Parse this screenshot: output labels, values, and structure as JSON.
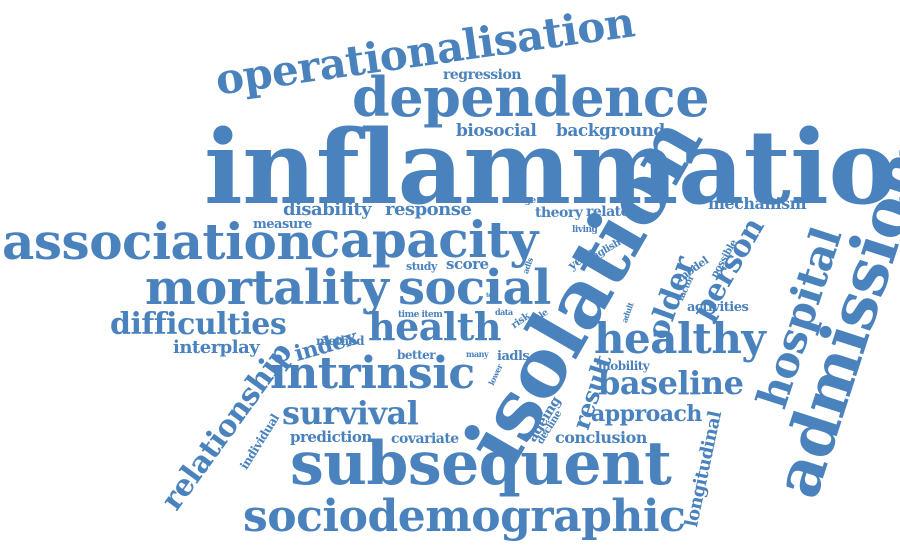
{
  "colors": {
    "word": "#4a82bd",
    "background": "#ffffff"
  },
  "words": [
    "inflammation",
    "isolation",
    "admission",
    "subsequent",
    "dependence",
    "sociodemographic",
    "association",
    "capacity",
    "operationalisation",
    "mortality",
    "social",
    "intrinsic",
    "health",
    "healthy",
    "hospital",
    "relationship",
    "survival",
    "difficulties",
    "baseline",
    "person",
    "older",
    "index",
    "approach",
    "result",
    "longitudinal",
    "biosocial",
    "background",
    "disability",
    "response",
    "interplay",
    "prediction",
    "covariate",
    "conclusion",
    "mechanism",
    "activities",
    "individual",
    "ageing",
    "regression",
    "mobility",
    "method",
    "score",
    "better",
    "theory",
    "related",
    "measure",
    "study",
    "decline",
    "iadls",
    "model",
    "possible",
    "factor",
    "year",
    "english",
    "living",
    "range",
    "wave",
    "time item",
    "data",
    "scale",
    "risk",
    "many",
    "lower",
    "adult",
    "test",
    "adls"
  ]
}
